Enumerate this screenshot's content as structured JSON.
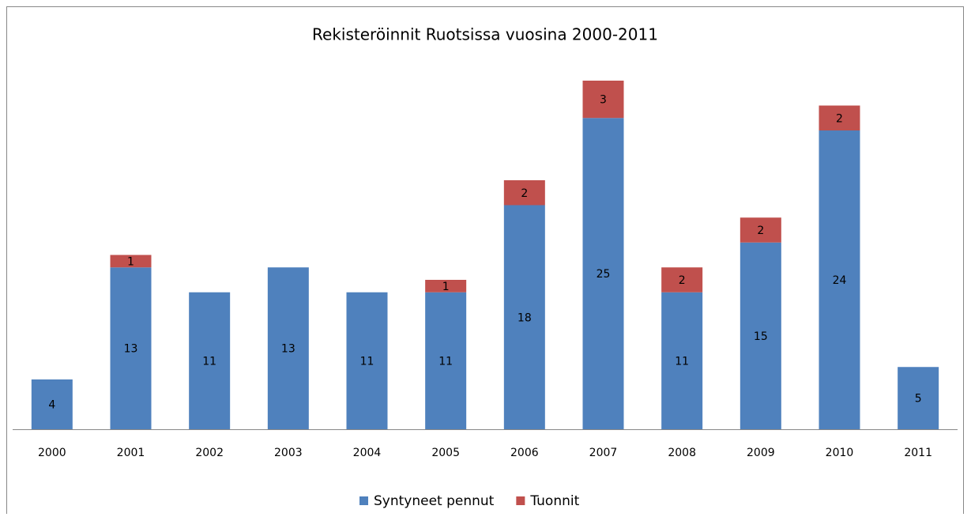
{
  "chart_data": {
    "type": "stacked_bar",
    "title": "Rekisteröinnit Ruotsissa vuosina 2000-2011",
    "categories": [
      "2000",
      "2001",
      "2002",
      "2003",
      "2004",
      "2005",
      "2006",
      "2007",
      "2008",
      "2009",
      "2010",
      "2011"
    ],
    "series": [
      {
        "name": "Syntyneet pennut",
        "color": "#4f81bd",
        "values": [
          4,
          13,
          11,
          13,
          11,
          11,
          18,
          25,
          11,
          15,
          24,
          5
        ]
      },
      {
        "name": "Tuonnit",
        "color": "#c0504d",
        "values": [
          null,
          1,
          null,
          null,
          null,
          1,
          2,
          3,
          2,
          2,
          2,
          null
        ]
      }
    ],
    "ylim": [
      0,
      28
    ],
    "legend": "bottom"
  }
}
